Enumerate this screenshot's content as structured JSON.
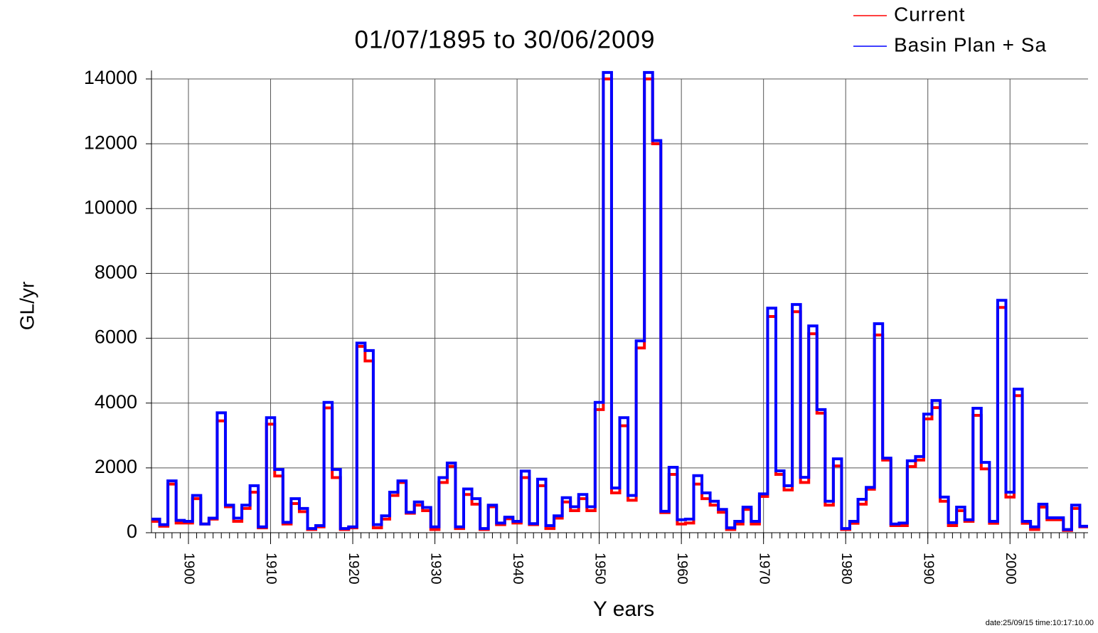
{
  "chart_data": {
    "type": "step",
    "title": "01/07/1895 to 30/06/2009",
    "x_label": "Y ears",
    "y_label": "GL/yr",
    "footer": "date:25/09/15 time:10:17:10.00",
    "x": [
      1896,
      1897,
      1898,
      1899,
      1900,
      1901,
      1902,
      1903,
      1904,
      1905,
      1906,
      1907,
      1908,
      1909,
      1910,
      1911,
      1912,
      1913,
      1914,
      1915,
      1916,
      1917,
      1918,
      1919,
      1920,
      1921,
      1922,
      1923,
      1924,
      1925,
      1926,
      1927,
      1928,
      1929,
      1930,
      1931,
      1932,
      1933,
      1934,
      1935,
      1936,
      1937,
      1938,
      1939,
      1940,
      1941,
      1942,
      1943,
      1944,
      1945,
      1946,
      1947,
      1948,
      1949,
      1950,
      1951,
      1952,
      1953,
      1954,
      1955,
      1956,
      1957,
      1958,
      1959,
      1960,
      1961,
      1962,
      1963,
      1964,
      1965,
      1966,
      1967,
      1968,
      1969,
      1970,
      1971,
      1972,
      1973,
      1974,
      1975,
      1976,
      1977,
      1978,
      1979,
      1980,
      1981,
      1982,
      1983,
      1984,
      1985,
      1986,
      1987,
      1988,
      1989,
      1990,
      1991,
      1992,
      1993,
      1994,
      1995,
      1996,
      1997,
      1998,
      1999,
      2000,
      2001,
      2002,
      2003,
      2004,
      2005,
      2006,
      2007,
      2008,
      2009
    ],
    "series": [
      {
        "name": "Current",
        "color": "#ff0000",
        "values": [
          350,
          200,
          1500,
          300,
          300,
          1050,
          270,
          420,
          3450,
          800,
          350,
          750,
          1250,
          150,
          3350,
          1750,
          270,
          900,
          650,
          100,
          180,
          3850,
          1700,
          100,
          150,
          5750,
          5300,
          150,
          420,
          1150,
          1550,
          600,
          850,
          680,
          100,
          1550,
          2050,
          130,
          1180,
          880,
          100,
          800,
          250,
          430,
          300,
          1700,
          250,
          1450,
          130,
          450,
          950,
          680,
          1050,
          680,
          3800,
          14000,
          1230,
          3300,
          1000,
          5700,
          14000,
          12000,
          620,
          1800,
          270,
          300,
          1500,
          1050,
          850,
          630,
          100,
          270,
          720,
          270,
          1120,
          6670,
          1800,
          1320,
          6820,
          1550,
          6140,
          3690,
          850,
          2060,
          100,
          290,
          880,
          1340,
          6100,
          2240,
          220,
          220,
          2040,
          2240,
          3510,
          3860,
          970,
          220,
          680,
          350,
          3620,
          1970,
          290,
          6950,
          1100,
          4230,
          290,
          100,
          790,
          400,
          400,
          70,
          750,
          180
        ]
      },
      {
        "name": "Basin Plan + Sa",
        "color": "#0000ff",
        "values": [
          420,
          250,
          1600,
          380,
          350,
          1150,
          270,
          450,
          3700,
          850,
          450,
          850,
          1450,
          180,
          3550,
          1950,
          320,
          1050,
          750,
          130,
          220,
          4020,
          1950,
          130,
          180,
          5850,
          5620,
          250,
          520,
          1250,
          1600,
          630,
          950,
          780,
          180,
          1700,
          2150,
          180,
          1350,
          1050,
          130,
          850,
          300,
          480,
          350,
          1900,
          280,
          1650,
          220,
          520,
          1080,
          800,
          1180,
          800,
          4020,
          14200,
          1380,
          3550,
          1150,
          5920,
          14200,
          12100,
          660,
          2020,
          400,
          420,
          1760,
          1230,
          970,
          720,
          150,
          350,
          790,
          350,
          1200,
          6930,
          1910,
          1450,
          7040,
          1710,
          6380,
          3800,
          970,
          2280,
          130,
          350,
          1030,
          1400,
          6450,
          2300,
          270,
          300,
          2220,
          2350,
          3660,
          4080,
          1100,
          310,
          790,
          400,
          3840,
          2170,
          350,
          7170,
          1250,
          4430,
          350,
          180,
          880,
          460,
          460,
          100,
          850,
          200
        ]
      }
    ],
    "xlim": [
      1895.5,
      2009.5
    ],
    "xticks": [
      1900,
      1910,
      1920,
      1930,
      1940,
      1950,
      1960,
      1970,
      1980,
      1990,
      2000
    ],
    "ylim": [
      0,
      14000
    ],
    "yticks": [
      0,
      2000,
      4000,
      6000,
      8000,
      10000,
      12000,
      14000
    ],
    "grid": true
  }
}
